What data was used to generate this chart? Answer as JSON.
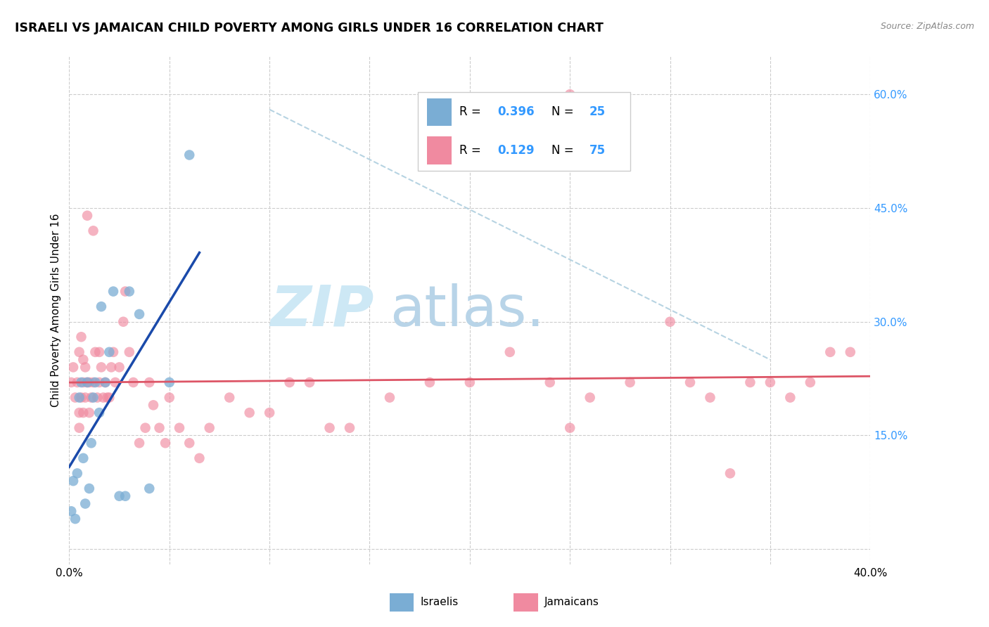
{
  "title": "ISRAELI VS JAMAICAN CHILD POVERTY AMONG GIRLS UNDER 16 CORRELATION CHART",
  "source": "Source: ZipAtlas.com",
  "ylabel": "Child Poverty Among Girls Under 16",
  "xmin": 0.0,
  "xmax": 0.4,
  "ymin": 0.0,
  "ymax": 0.65,
  "x_ticks": [
    0.0,
    0.05,
    0.1,
    0.15,
    0.2,
    0.25,
    0.3,
    0.35,
    0.4
  ],
  "x_tick_labels": [
    "0.0%",
    "",
    "",
    "",
    "",
    "",
    "",
    "",
    "40.0%"
  ],
  "y_ticks_right": [
    0.0,
    0.15,
    0.3,
    0.45,
    0.6
  ],
  "y_tick_labels_right": [
    "",
    "15.0%",
    "30.0%",
    "45.0%",
    "60.0%"
  ],
  "israeli_color": "#7aadd4",
  "jamaican_color": "#f08aa0",
  "trend_israeli_color": "#1a4aaa",
  "trend_jamaican_color": "#dd5566",
  "diagonal_color": "#aaccdd",
  "r_n_color": "#3399ff",
  "watermark_zip_color": "#cde8f5",
  "watermark_atlas_color": "#b8d4e8",
  "grid_color": "#cccccc",
  "legend_border_color": "#cccccc",
  "israeli_x": [
    0.001,
    0.002,
    0.003,
    0.004,
    0.005,
    0.006,
    0.007,
    0.008,
    0.009,
    0.01,
    0.011,
    0.012,
    0.013,
    0.015,
    0.016,
    0.018,
    0.02,
    0.022,
    0.025,
    0.028,
    0.03,
    0.035,
    0.04,
    0.05,
    0.06
  ],
  "israeli_y": [
    0.05,
    0.09,
    0.04,
    0.1,
    0.2,
    0.22,
    0.12,
    0.06,
    0.22,
    0.08,
    0.14,
    0.2,
    0.22,
    0.18,
    0.32,
    0.22,
    0.26,
    0.34,
    0.07,
    0.07,
    0.34,
    0.31,
    0.08,
    0.22,
    0.52
  ],
  "jamaican_x": [
    0.001,
    0.002,
    0.003,
    0.004,
    0.005,
    0.005,
    0.006,
    0.006,
    0.007,
    0.007,
    0.008,
    0.008,
    0.009,
    0.01,
    0.01,
    0.011,
    0.012,
    0.013,
    0.014,
    0.015,
    0.015,
    0.016,
    0.017,
    0.018,
    0.019,
    0.02,
    0.021,
    0.022,
    0.023,
    0.025,
    0.027,
    0.028,
    0.03,
    0.032,
    0.035,
    0.038,
    0.04,
    0.042,
    0.045,
    0.048,
    0.05,
    0.055,
    0.06,
    0.065,
    0.07,
    0.08,
    0.09,
    0.1,
    0.11,
    0.12,
    0.13,
    0.14,
    0.16,
    0.18,
    0.2,
    0.22,
    0.24,
    0.25,
    0.26,
    0.28,
    0.3,
    0.31,
    0.32,
    0.33,
    0.34,
    0.35,
    0.36,
    0.37,
    0.38,
    0.39,
    0.005,
    0.007,
    0.009,
    0.012,
    0.25
  ],
  "jamaican_y": [
    0.22,
    0.24,
    0.2,
    0.22,
    0.26,
    0.18,
    0.2,
    0.28,
    0.22,
    0.25,
    0.2,
    0.24,
    0.22,
    0.18,
    0.22,
    0.2,
    0.22,
    0.26,
    0.2,
    0.26,
    0.22,
    0.24,
    0.2,
    0.22,
    0.2,
    0.2,
    0.24,
    0.26,
    0.22,
    0.24,
    0.3,
    0.34,
    0.26,
    0.22,
    0.14,
    0.16,
    0.22,
    0.19,
    0.16,
    0.14,
    0.2,
    0.16,
    0.14,
    0.12,
    0.16,
    0.2,
    0.18,
    0.18,
    0.22,
    0.22,
    0.16,
    0.16,
    0.2,
    0.22,
    0.22,
    0.26,
    0.22,
    0.16,
    0.2,
    0.22,
    0.3,
    0.22,
    0.2,
    0.1,
    0.22,
    0.22,
    0.2,
    0.22,
    0.26,
    0.26,
    0.16,
    0.18,
    0.44,
    0.42,
    0.6
  ]
}
